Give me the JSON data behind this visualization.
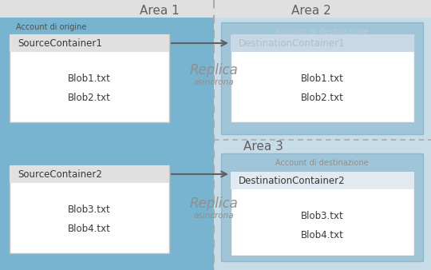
{
  "fig_width": 5.4,
  "fig_height": 3.38,
  "dpi": 100,
  "bg_color": "#e0e0e0",
  "area1_color": "#78b3d0",
  "area2_color": "#c8dce8",
  "area3_color": "#c8dce8",
  "account_dest_color_area2": "#a0c4d8",
  "account_dest_color_area3": "#a0c4d8",
  "src_box_color": "#f0f0f0",
  "src_box_header_color": "#e0e0e0",
  "dst1_box_color": "#d8e8f0",
  "dst1_box_header_color": "#c8d8e4",
  "dst2_box_color": "#f5f5f5",
  "dst2_box_header_color": "#e0eaf0",
  "white": "#ffffff",
  "area1_label": "Area 1",
  "area2_label": "Area 2",
  "area3_label": "Area 3",
  "account_origine_label": "Account di origine",
  "account_dest_label": "Account di destinazione",
  "src_container1": "SourceContainer1",
  "src_container2": "SourceContainer2",
  "dst_container1": "DestinationContainer1",
  "dst_container2": "DestinationContainer2",
  "blob1": "Blob1.txt",
  "blob2": "Blob2.txt",
  "blob3": "Blob3.txt",
  "blob4": "Blob4.txt",
  "replica_label": "Replica",
  "asincrona_label": "asincrona",
  "area_label_color": "#606060",
  "account_orig_color": "#505050",
  "account_dest_text_color_area2": "#b8cfd8",
  "account_dest_text_color_area3": "#909090",
  "src_container_text_color": "#383838",
  "dst_container1_text_color": "#b0bfc8",
  "dst_container2_text_color": "#383838",
  "blob_text_color": "#383838",
  "replica_color": "#909090",
  "arrow_color": "#606060",
  "dash_color": "#aaaaaa"
}
